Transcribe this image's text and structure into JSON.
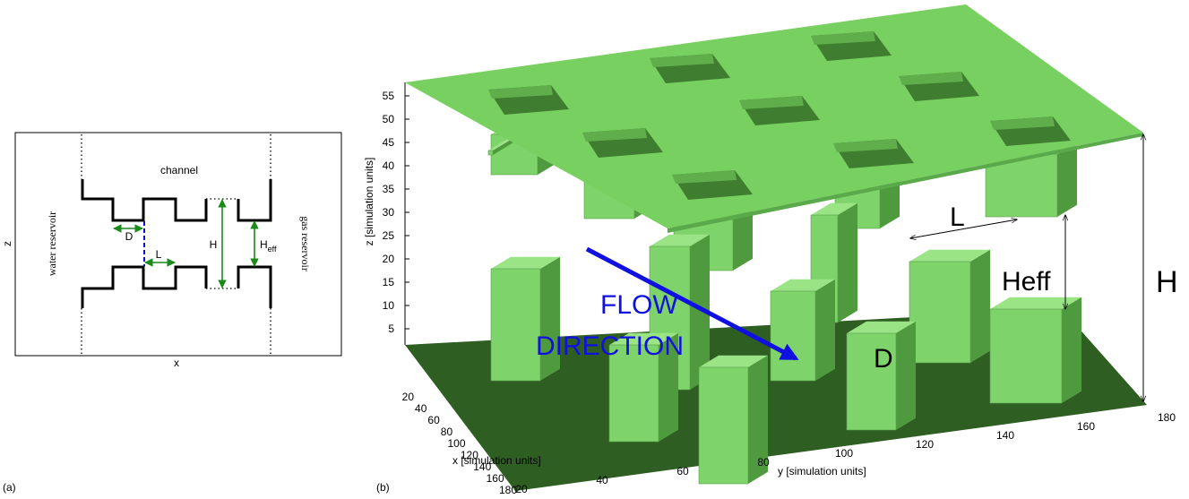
{
  "panel_a": {
    "label": "(a)",
    "channel": "channel",
    "left_reservoir": "water reservoir",
    "right_reservoir": "gas reservoir",
    "z_axis": "z",
    "x_axis": "x",
    "dimensions": {
      "D": "D",
      "L": "L",
      "H": "H",
      "H_eff": {
        "base": "H",
        "sub": "eff"
      }
    }
  },
  "panel_b": {
    "label": "(b)",
    "z_axis_label": "z [simulation units]",
    "z_ticks": [
      5,
      10,
      15,
      20,
      25,
      30,
      35,
      40,
      45,
      50,
      55
    ],
    "x_axis_label": "x [simulation units]",
    "x_ticks": [
      20,
      40,
      60,
      80,
      100,
      120,
      140,
      160,
      180
    ],
    "y_axis_label": "y [simulation units]",
    "y_ticks": [
      20,
      40,
      60,
      80,
      100,
      120,
      140,
      160,
      180
    ],
    "flow_label": [
      "FLOW",
      "DIRECTION"
    ],
    "dimensions": {
      "D": "D",
      "L": "L",
      "Heff": "Heff",
      "H": "H"
    }
  }
}
